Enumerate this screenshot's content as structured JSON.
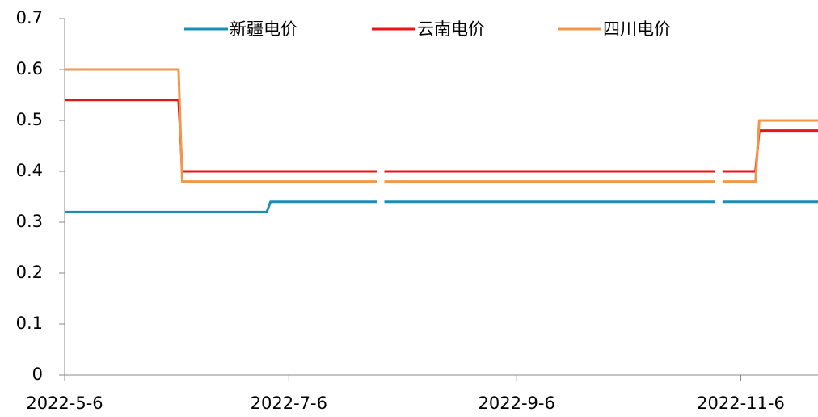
{
  "chart_data": {
    "type": "line",
    "x": [
      "2022-05-06",
      "2022-06-06",
      "2022-06-07",
      "2022-06-30",
      "2022-07-01",
      "2022-07-30",
      "2022-07-31",
      "2022-08-01",
      "2022-10-30",
      "2022-10-31",
      "2022-11-01",
      "2022-11-10",
      "2022-11-11",
      "2022-11-27"
    ],
    "series": [
      {
        "name": "新疆电价",
        "color": "#1a8fb5",
        "values": [
          0.32,
          0.32,
          0.32,
          0.32,
          0.34,
          0.34,
          null,
          0.34,
          0.34,
          null,
          0.34,
          0.34,
          0.34,
          0.34
        ]
      },
      {
        "name": "云南电价",
        "color": "#e8141a",
        "values": [
          0.54,
          0.54,
          0.4,
          0.4,
          0.4,
          0.4,
          null,
          0.4,
          0.4,
          null,
          0.4,
          0.4,
          0.48,
          0.48
        ]
      },
      {
        "name": "四川电价",
        "color": "#f0974a",
        "values": [
          0.6,
          0.6,
          0.38,
          0.38,
          0.38,
          0.38,
          null,
          0.38,
          0.38,
          null,
          0.38,
          0.38,
          0.5,
          0.5
        ]
      }
    ],
    "xlim": [
      "2022-05-06",
      "2022-11-27"
    ],
    "xticks": [
      {
        "value": "2022-05-06",
        "label": "2022-5-6"
      },
      {
        "value": "2022-07-06",
        "label": "2022-7-6"
      },
      {
        "value": "2022-09-06",
        "label": "2022-9-6"
      },
      {
        "value": "2022-11-06",
        "label": "2022-11-6"
      }
    ],
    "ylim": [
      0,
      0.7
    ],
    "yticks": [
      0,
      0.1,
      0.2,
      0.3,
      0.4,
      0.5,
      0.6,
      0.7
    ],
    "legend": "top"
  }
}
